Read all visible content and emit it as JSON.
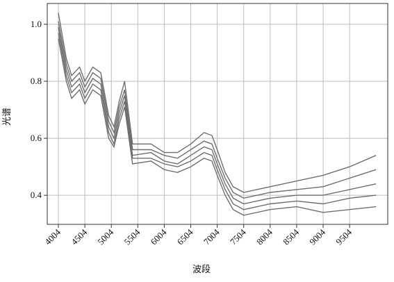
{
  "chart_data": {
    "type": "line",
    "x_label": "波段",
    "y_label": "光谱",
    "x": [
      4004,
      4154,
      4254,
      4404,
      4504,
      4654,
      4804,
      4954,
      5054,
      5154,
      5254,
      5404,
      5754,
      6004,
      6254,
      6504,
      6754,
      6904,
      7004,
      7154,
      7304,
      7504,
      8004,
      8504,
      9004,
      9504,
      10004
    ],
    "series": [
      {
        "color": "#6e6e6e",
        "values": [
          1.04,
          0.88,
          0.82,
          0.85,
          0.8,
          0.85,
          0.83,
          0.68,
          0.64,
          0.73,
          0.8,
          0.58,
          0.58,
          0.55,
          0.55,
          0.58,
          0.62,
          0.61,
          0.56,
          0.48,
          0.43,
          0.41,
          0.43,
          0.45,
          0.47,
          0.5,
          0.54
        ]
      },
      {
        "color": "#6e6e6e",
        "values": [
          1.01,
          0.86,
          0.8,
          0.83,
          0.78,
          0.83,
          0.81,
          0.66,
          0.62,
          0.71,
          0.77,
          0.56,
          0.56,
          0.54,
          0.53,
          0.56,
          0.59,
          0.58,
          0.53,
          0.46,
          0.41,
          0.39,
          0.41,
          0.42,
          0.43,
          0.46,
          0.49
        ]
      },
      {
        "color": "#6e6e6e",
        "values": [
          0.99,
          0.84,
          0.78,
          0.81,
          0.76,
          0.81,
          0.79,
          0.64,
          0.6,
          0.69,
          0.75,
          0.54,
          0.55,
          0.52,
          0.51,
          0.54,
          0.57,
          0.56,
          0.51,
          0.44,
          0.39,
          0.37,
          0.39,
          0.4,
          0.4,
          0.42,
          0.44
        ]
      },
      {
        "color": "#6e6e6e",
        "values": [
          0.97,
          0.82,
          0.76,
          0.79,
          0.74,
          0.79,
          0.77,
          0.62,
          0.58,
          0.67,
          0.73,
          0.53,
          0.53,
          0.51,
          0.5,
          0.52,
          0.55,
          0.54,
          0.49,
          0.42,
          0.37,
          0.35,
          0.37,
          0.38,
          0.37,
          0.39,
          0.4
        ]
      },
      {
        "color": "#6e6e6e",
        "values": [
          0.95,
          0.8,
          0.74,
          0.77,
          0.72,
          0.77,
          0.75,
          0.6,
          0.57,
          0.65,
          0.71,
          0.51,
          0.52,
          0.49,
          0.48,
          0.5,
          0.53,
          0.52,
          0.47,
          0.4,
          0.35,
          0.33,
          0.35,
          0.36,
          0.34,
          0.35,
          0.36
        ]
      }
    ],
    "xlim": [
      3794,
      10224
    ],
    "xticks": [
      4004,
      4504,
      5004,
      5504,
      6004,
      6504,
      7004,
      7504,
      8004,
      8504,
      9004,
      9504
    ],
    "ylim": [
      0.298,
      1.073
    ],
    "yticks": [
      {
        "value": 1,
        "label": "1.0"
      },
      0.8,
      0.6,
      0.4
    ],
    "grid": true
  }
}
